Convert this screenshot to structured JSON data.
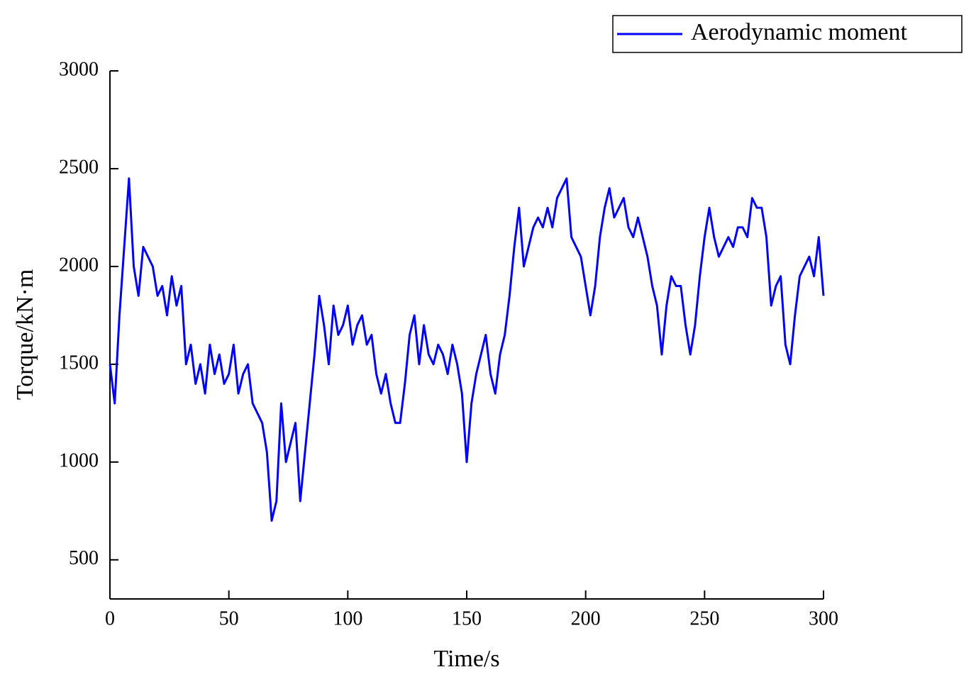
{
  "chart_data": {
    "type": "line",
    "xlabel": "Time/s",
    "ylabel": "Torque/kN·m",
    "x": [
      0,
      2,
      4,
      6,
      8,
      10,
      12,
      14,
      16,
      18,
      20,
      22,
      24,
      26,
      28,
      30,
      32,
      34,
      36,
      38,
      40,
      42,
      44,
      46,
      48,
      50,
      52,
      54,
      56,
      58,
      60,
      62,
      64,
      66,
      68,
      70,
      72,
      74,
      76,
      78,
      80,
      82,
      84,
      86,
      88,
      90,
      92,
      94,
      96,
      98,
      100,
      102,
      104,
      106,
      108,
      110,
      112,
      114,
      116,
      118,
      120,
      122,
      124,
      126,
      128,
      130,
      132,
      134,
      136,
      138,
      140,
      142,
      144,
      146,
      148,
      150,
      152,
      154,
      156,
      158,
      160,
      162,
      164,
      166,
      168,
      170,
      172,
      174,
      176,
      178,
      180,
      182,
      184,
      186,
      188,
      190,
      192,
      194,
      196,
      198,
      200,
      202,
      204,
      206,
      208,
      210,
      212,
      214,
      216,
      218,
      220,
      222,
      224,
      226,
      228,
      230,
      232,
      234,
      236,
      238,
      240,
      242,
      244,
      246,
      248,
      250,
      252,
      254,
      256,
      258,
      260,
      262,
      264,
      266,
      268,
      270,
      272,
      274,
      276,
      278,
      280,
      282,
      284,
      286,
      288,
      290,
      292,
      294,
      296,
      298,
      300
    ],
    "series": [
      {
        "name": "Aerodynamic moment",
        "color": "#0000ff",
        "values": [
          1500,
          1300,
          1750,
          2100,
          2450,
          2000,
          1850,
          2100,
          2050,
          2000,
          1850,
          1900,
          1750,
          1950,
          1800,
          1900,
          1500,
          1600,
          1400,
          1500,
          1350,
          1600,
          1450,
          1550,
          1400,
          1450,
          1600,
          1350,
          1450,
          1500,
          1300,
          1250,
          1200,
          1050,
          700,
          800,
          1300,
          1000,
          1100,
          1200,
          800,
          1050,
          1300,
          1550,
          1850,
          1700,
          1500,
          1800,
          1650,
          1700,
          1800,
          1600,
          1700,
          1750,
          1600,
          1650,
          1450,
          1350,
          1450,
          1300,
          1200,
          1200,
          1400,
          1650,
          1750,
          1500,
          1700,
          1550,
          1500,
          1600,
          1550,
          1450,
          1600,
          1500,
          1350,
          1000,
          1300,
          1450,
          1550,
          1650,
          1450,
          1350,
          1550,
          1650,
          1850,
          2100,
          2300,
          2000,
          2100,
          2200,
          2250,
          2200,
          2300,
          2200,
          2350,
          2400,
          2450,
          2150,
          2100,
          2050,
          1900,
          1750,
          1900,
          2150,
          2300,
          2400,
          2250,
          2300,
          2350,
          2200,
          2150,
          2250,
          2150,
          2050,
          1900,
          1800,
          1550,
          1800,
          1950,
          1900,
          1900,
          1700,
          1550,
          1700,
          1950,
          2150,
          2300,
          2150,
          2050,
          2100,
          2150,
          2100,
          2200,
          2200,
          2150,
          2350,
          2300,
          2300,
          2150,
          1800,
          1900,
          1950,
          1600,
          1500,
          1750,
          1950,
          2000,
          2050,
          1950,
          2150,
          1850
        ]
      }
    ],
    "xlim": [
      0,
      300
    ],
    "xticks": [
      0,
      50,
      100,
      150,
      200,
      250,
      300
    ],
    "ylim": [
      300,
      3000
    ],
    "yticks": [
      500,
      1000,
      1500,
      2000,
      2500,
      3000
    ],
    "legend": "upper right"
  }
}
